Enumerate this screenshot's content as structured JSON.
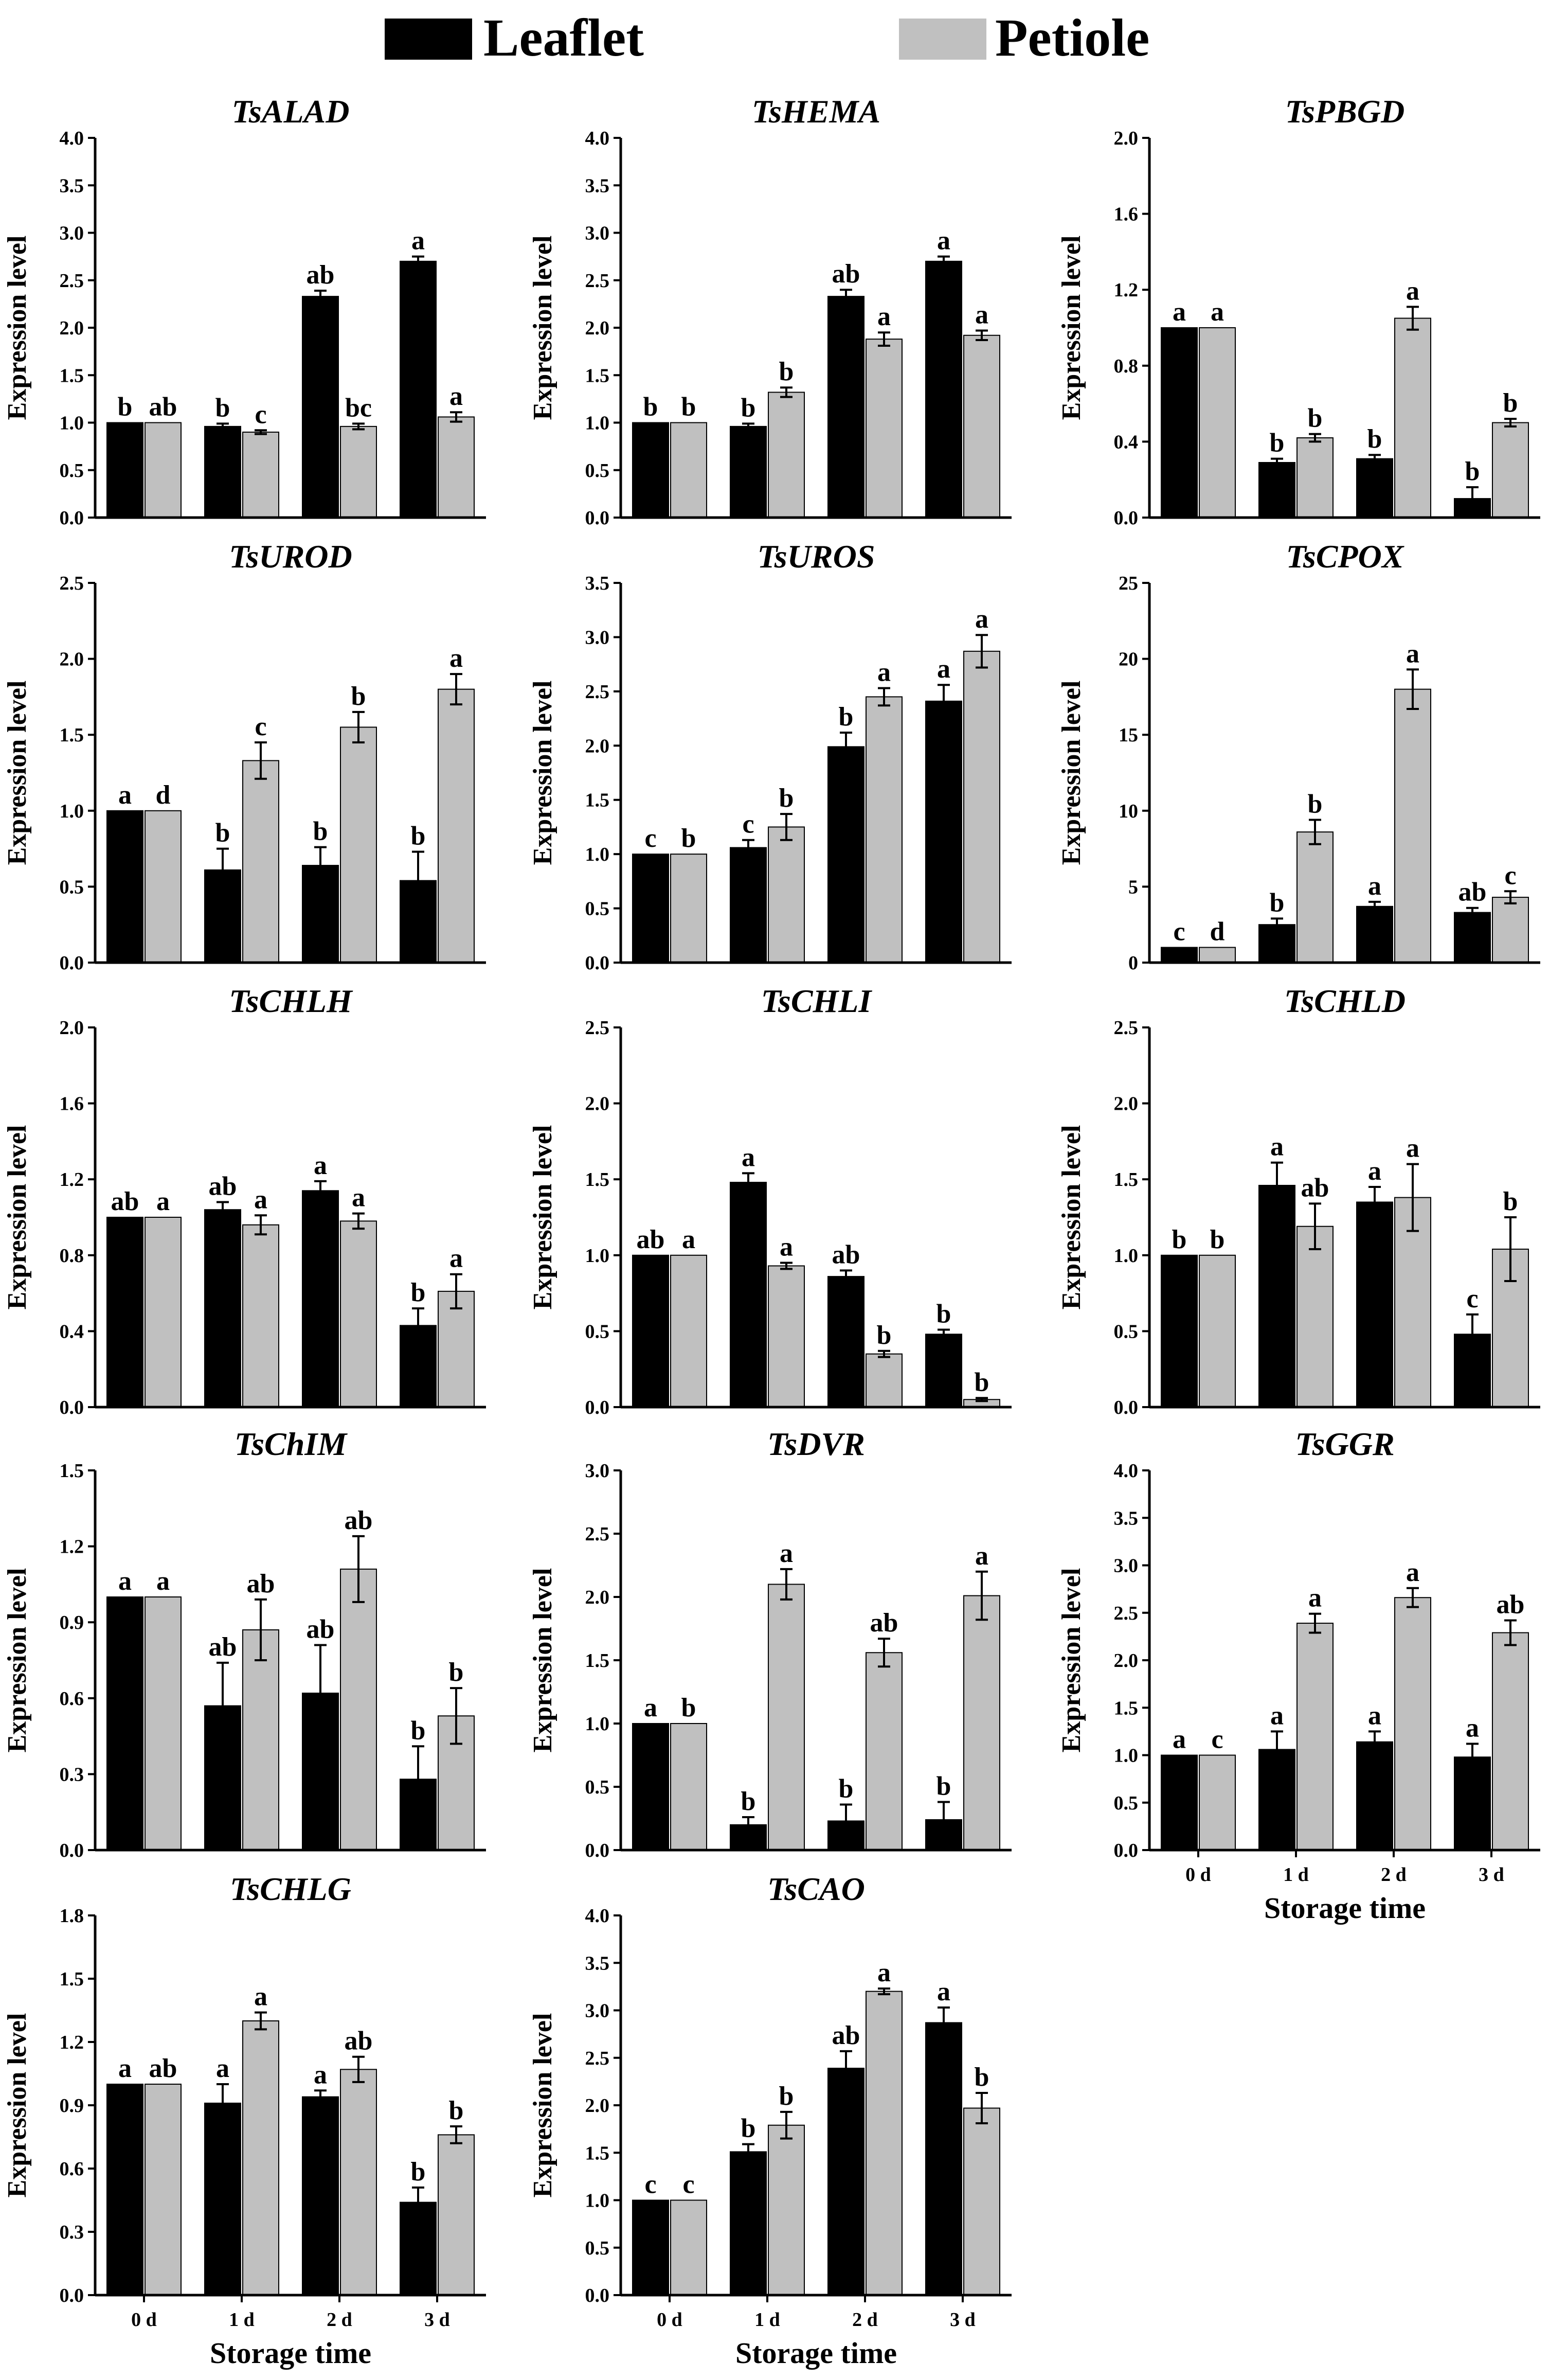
{
  "legend": {
    "leaflet_label": "Leaflet",
    "petiole_label": "Petiole"
  },
  "colors": {
    "leaflet": "#000000",
    "petiole": "#c0c0c0"
  },
  "chart_data": [
    {
      "type": "bar",
      "title": "TsALAD",
      "ylabel": "Expression level",
      "xlabel": "",
      "categories": [
        "0 d",
        "1 d",
        "2 d",
        "3 d"
      ],
      "show_x_ticks": false,
      "ylim": [
        0,
        4.0
      ],
      "yticks": [
        "0.0",
        "0.5",
        "1.0",
        "1.5",
        "2.0",
        "2.5",
        "3.0",
        "3.5",
        "4.0"
      ],
      "series": [
        {
          "name": "Leaflet",
          "values": [
            1.0,
            0.96,
            2.33,
            2.7
          ],
          "errors": [
            0,
            0.03,
            0.06,
            0.05
          ],
          "letters": [
            "b",
            "b",
            "ab",
            "a"
          ]
        },
        {
          "name": "Petiole",
          "values": [
            1.0,
            0.9,
            0.96,
            1.06
          ],
          "errors": [
            0,
            0.02,
            0.03,
            0.05
          ],
          "letters": [
            "ab",
            "c",
            "bc",
            "a"
          ]
        }
      ]
    },
    {
      "type": "bar",
      "title": "TsHEMA",
      "ylabel": "Expression level",
      "xlabel": "",
      "categories": [
        "0 d",
        "1 d",
        "2 d",
        "3 d"
      ],
      "show_x_ticks": false,
      "ylim": [
        0,
        4.0
      ],
      "yticks": [
        "0.0",
        "0.5",
        "1.0",
        "1.5",
        "2.0",
        "2.5",
        "3.0",
        "3.5",
        "4.0"
      ],
      "series": [
        {
          "name": "Leaflet",
          "values": [
            1.0,
            0.96,
            2.33,
            2.7
          ],
          "errors": [
            0,
            0.03,
            0.07,
            0.05
          ],
          "letters": [
            "b",
            "b",
            "ab",
            "a"
          ]
        },
        {
          "name": "Petiole",
          "values": [
            1.0,
            1.32,
            1.88,
            1.92
          ],
          "errors": [
            0,
            0.05,
            0.07,
            0.05
          ],
          "letters": [
            "b",
            "b",
            "a",
            "a"
          ]
        }
      ]
    },
    {
      "type": "bar",
      "title": "TsPBGD",
      "ylabel": "Expression level",
      "xlabel": "",
      "categories": [
        "0 d",
        "1 d",
        "2 d",
        "3 d"
      ],
      "show_x_ticks": false,
      "ylim": [
        0,
        2.0
      ],
      "yticks": [
        "0.0",
        "0.4",
        "0.8",
        "1.2",
        "1.6",
        "2.0"
      ],
      "series": [
        {
          "name": "Leaflet",
          "values": [
            1.0,
            0.29,
            0.31,
            0.1
          ],
          "errors": [
            0,
            0.02,
            0.02,
            0.06
          ],
          "letters": [
            "a",
            "b",
            "b",
            "b"
          ]
        },
        {
          "name": "Petiole",
          "values": [
            1.0,
            0.42,
            1.05,
            0.5
          ],
          "errors": [
            0,
            0.02,
            0.06,
            0.02
          ],
          "letters": [
            "a",
            "b",
            "a",
            "b"
          ]
        }
      ]
    },
    {
      "type": "bar",
      "title": "TsUROD",
      "ylabel": "Expression level",
      "xlabel": "",
      "categories": [
        "0 d",
        "1 d",
        "2 d",
        "3 d"
      ],
      "show_x_ticks": false,
      "ylim": [
        0,
        2.5
      ],
      "yticks": [
        "0.0",
        "0.5",
        "1.0",
        "1.5",
        "2.0",
        "2.5"
      ],
      "series": [
        {
          "name": "Leaflet",
          "values": [
            1.0,
            0.61,
            0.64,
            0.54
          ],
          "errors": [
            0,
            0.14,
            0.12,
            0.19
          ],
          "letters": [
            "a",
            "b",
            "b",
            "b"
          ]
        },
        {
          "name": "Petiole",
          "values": [
            1.0,
            1.33,
            1.55,
            1.8
          ],
          "errors": [
            0,
            0.12,
            0.1,
            0.1
          ],
          "letters": [
            "d",
            "c",
            "b",
            "a"
          ]
        }
      ]
    },
    {
      "type": "bar",
      "title": "TsUROS",
      "ylabel": "Expression level",
      "xlabel": "",
      "categories": [
        "0 d",
        "1 d",
        "2 d",
        "3 d"
      ],
      "show_x_ticks": false,
      "ylim": [
        0,
        3.5
      ],
      "yticks": [
        "0.0",
        "0.5",
        "1.0",
        "1.5",
        "2.0",
        "2.5",
        "3.0",
        "3.5"
      ],
      "series": [
        {
          "name": "Leaflet",
          "values": [
            1.0,
            1.06,
            1.99,
            2.41
          ],
          "errors": [
            0,
            0.07,
            0.13,
            0.15
          ],
          "letters": [
            "c",
            "c",
            "b",
            "a"
          ]
        },
        {
          "name": "Petiole",
          "values": [
            1.0,
            1.25,
            2.45,
            2.87
          ],
          "errors": [
            0,
            0.12,
            0.08,
            0.15
          ],
          "letters": [
            "b",
            "b",
            "a",
            "a"
          ]
        }
      ]
    },
    {
      "type": "bar",
      "title": "TsCPOX",
      "ylabel": "Expression level",
      "xlabel": "",
      "categories": [
        "0 d",
        "1 d",
        "2 d",
        "3 d"
      ],
      "show_x_ticks": false,
      "ylim": [
        0,
        25
      ],
      "yticks": [
        "0",
        "5",
        "10",
        "15",
        "20",
        "25"
      ],
      "series": [
        {
          "name": "Leaflet",
          "values": [
            1.0,
            2.5,
            3.7,
            3.3
          ],
          "errors": [
            0,
            0.4,
            0.3,
            0.3
          ],
          "letters": [
            "c",
            "b",
            "a",
            "ab"
          ]
        },
        {
          "name": "Petiole",
          "values": [
            1.0,
            8.6,
            18.0,
            4.3
          ],
          "errors": [
            0,
            0.8,
            1.3,
            0.4
          ],
          "letters": [
            "d",
            "b",
            "a",
            "c"
          ]
        }
      ]
    },
    {
      "type": "bar",
      "title": "TsCHLH",
      "ylabel": "Expression level",
      "xlabel": "",
      "categories": [
        "0 d",
        "1 d",
        "2 d",
        "3 d"
      ],
      "show_x_ticks": false,
      "ylim": [
        0,
        2.0
      ],
      "yticks": [
        "0.0",
        "0.4",
        "0.8",
        "1.2",
        "1.6",
        "2.0"
      ],
      "series": [
        {
          "name": "Leaflet",
          "values": [
            1.0,
            1.04,
            1.14,
            0.43
          ],
          "errors": [
            0,
            0.04,
            0.05,
            0.09
          ],
          "letters": [
            "ab",
            "ab",
            "a",
            "b"
          ]
        },
        {
          "name": "Petiole",
          "values": [
            1.0,
            0.96,
            0.98,
            0.61
          ],
          "errors": [
            0,
            0.05,
            0.04,
            0.09
          ],
          "letters": [
            "a",
            "a",
            "a",
            "a"
          ]
        }
      ]
    },
    {
      "type": "bar",
      "title": "TsCHLI",
      "ylabel": "Expression level",
      "xlabel": "",
      "categories": [
        "0 d",
        "1 d",
        "2 d",
        "3 d"
      ],
      "show_x_ticks": false,
      "ylim": [
        0,
        2.5
      ],
      "yticks": [
        "0.0",
        "0.5",
        "1.0",
        "1.5",
        "2.0",
        "2.5"
      ],
      "series": [
        {
          "name": "Leaflet",
          "values": [
            1.0,
            1.48,
            0.86,
            0.48
          ],
          "errors": [
            0,
            0.06,
            0.04,
            0.03
          ],
          "letters": [
            "ab",
            "a",
            "ab",
            "b"
          ]
        },
        {
          "name": "Petiole",
          "values": [
            1.0,
            0.93,
            0.35,
            0.05
          ],
          "errors": [
            0,
            0.02,
            0.02,
            0.01
          ],
          "letters": [
            "a",
            "a",
            "b",
            "b"
          ]
        }
      ]
    },
    {
      "type": "bar",
      "title": "TsCHLD",
      "ylabel": "Expression level",
      "xlabel": "",
      "categories": [
        "0 d",
        "1 d",
        "2 d",
        "3 d"
      ],
      "show_x_ticks": false,
      "ylim": [
        0,
        2.5
      ],
      "yticks": [
        "0.0",
        "0.5",
        "1.0",
        "1.5",
        "2.0",
        "2.5"
      ],
      "series": [
        {
          "name": "Leaflet",
          "values": [
            1.0,
            1.46,
            1.35,
            0.48
          ],
          "errors": [
            0,
            0.15,
            0.1,
            0.13
          ],
          "letters": [
            "b",
            "a",
            "a",
            "c"
          ]
        },
        {
          "name": "Petiole",
          "values": [
            1.0,
            1.19,
            1.38,
            1.04
          ],
          "errors": [
            0,
            0.15,
            0.22,
            0.21
          ],
          "letters": [
            "b",
            "ab",
            "a",
            "b"
          ]
        }
      ]
    },
    {
      "type": "bar",
      "title": "TsChIM",
      "ylabel": "Expression level",
      "xlabel": "",
      "categories": [
        "0 d",
        "1 d",
        "2 d",
        "3 d"
      ],
      "show_x_ticks": false,
      "ylim": [
        0,
        1.5
      ],
      "yticks": [
        "0.0",
        "0.3",
        "0.6",
        "0.9",
        "1.2",
        "1.5"
      ],
      "series": [
        {
          "name": "Leaflet",
          "values": [
            1.0,
            0.57,
            0.62,
            0.28
          ],
          "errors": [
            0,
            0.17,
            0.19,
            0.13
          ],
          "letters": [
            "a",
            "ab",
            "ab",
            "b"
          ]
        },
        {
          "name": "Petiole",
          "values": [
            1.0,
            0.87,
            1.11,
            0.53
          ],
          "errors": [
            0,
            0.12,
            0.13,
            0.11
          ],
          "letters": [
            "a",
            "ab",
            "ab",
            "b"
          ]
        }
      ]
    },
    {
      "type": "bar",
      "title": "TsDVR",
      "ylabel": "Expression level",
      "xlabel": "",
      "categories": [
        "0 d",
        "1 d",
        "2 d",
        "3 d"
      ],
      "show_x_ticks": false,
      "ylim": [
        0,
        3.0
      ],
      "yticks": [
        "0.0",
        "0.5",
        "1.0",
        "1.5",
        "2.0",
        "2.5",
        "3.0"
      ],
      "series": [
        {
          "name": "Leaflet",
          "values": [
            1.0,
            0.2,
            0.23,
            0.24
          ],
          "errors": [
            0,
            0.06,
            0.13,
            0.14
          ],
          "letters": [
            "a",
            "b",
            "b",
            "b"
          ]
        },
        {
          "name": "Petiole",
          "values": [
            1.0,
            2.1,
            1.56,
            2.01
          ],
          "errors": [
            0,
            0.12,
            0.11,
            0.19
          ],
          "letters": [
            "b",
            "a",
            "ab",
            "a"
          ]
        }
      ]
    },
    {
      "type": "bar",
      "title": "TsGGR",
      "ylabel": "Expression level",
      "xlabel": "Storage time",
      "categories": [
        "0 d",
        "1 d",
        "2 d",
        "3 d"
      ],
      "show_x_ticks": true,
      "ylim": [
        0,
        4.0
      ],
      "yticks": [
        "0.0",
        "0.5",
        "1.0",
        "1.5",
        "2.0",
        "2.5",
        "3.0",
        "3.5",
        "4.0"
      ],
      "series": [
        {
          "name": "Leaflet",
          "values": [
            1.0,
            1.06,
            1.14,
            0.98
          ],
          "errors": [
            0,
            0.19,
            0.11,
            0.14
          ],
          "letters": [
            "a",
            "a",
            "a",
            "a"
          ]
        },
        {
          "name": "Petiole",
          "values": [
            1.0,
            2.39,
            2.66,
            2.29
          ],
          "errors": [
            0,
            0.1,
            0.1,
            0.13
          ],
          "letters": [
            "c",
            "a",
            "a",
            "ab"
          ]
        }
      ]
    },
    {
      "type": "bar",
      "title": "TsCHLG",
      "ylabel": "Expression level",
      "xlabel": "Storage time",
      "categories": [
        "0 d",
        "1 d",
        "2 d",
        "3 d"
      ],
      "show_x_ticks": true,
      "ylim": [
        0,
        1.8
      ],
      "yticks": [
        "0.0",
        "0.3",
        "0.6",
        "0.9",
        "1.2",
        "1.5",
        "1.8"
      ],
      "series": [
        {
          "name": "Leaflet",
          "values": [
            1.0,
            0.91,
            0.94,
            0.44
          ],
          "errors": [
            0,
            0.09,
            0.03,
            0.07
          ],
          "letters": [
            "a",
            "a",
            "a",
            "b"
          ]
        },
        {
          "name": "Petiole",
          "values": [
            1.0,
            1.3,
            1.07,
            0.76
          ],
          "errors": [
            0,
            0.04,
            0.06,
            0.04
          ],
          "letters": [
            "ab",
            "a",
            "ab",
            "b"
          ]
        }
      ]
    },
    {
      "type": "bar",
      "title": "TsCAO",
      "ylabel": "Expression level",
      "xlabel": "Storage time",
      "categories": [
        "0 d",
        "1 d",
        "2 d",
        "3 d"
      ],
      "show_x_ticks": true,
      "ylim": [
        0,
        4.0
      ],
      "yticks": [
        "0.0",
        "0.5",
        "1.0",
        "1.5",
        "2.0",
        "2.5",
        "3.0",
        "3.5",
        "4.0"
      ],
      "series": [
        {
          "name": "Leaflet",
          "values": [
            1.0,
            1.51,
            2.39,
            2.87
          ],
          "errors": [
            0,
            0.08,
            0.18,
            0.16
          ],
          "letters": [
            "c",
            "b",
            "ab",
            "a"
          ]
        },
        {
          "name": "Petiole",
          "values": [
            1.0,
            1.79,
            3.2,
            1.97
          ],
          "errors": [
            0,
            0.14,
            0.03,
            0.16
          ],
          "letters": [
            "c",
            "b",
            "a",
            "b"
          ]
        }
      ]
    }
  ]
}
